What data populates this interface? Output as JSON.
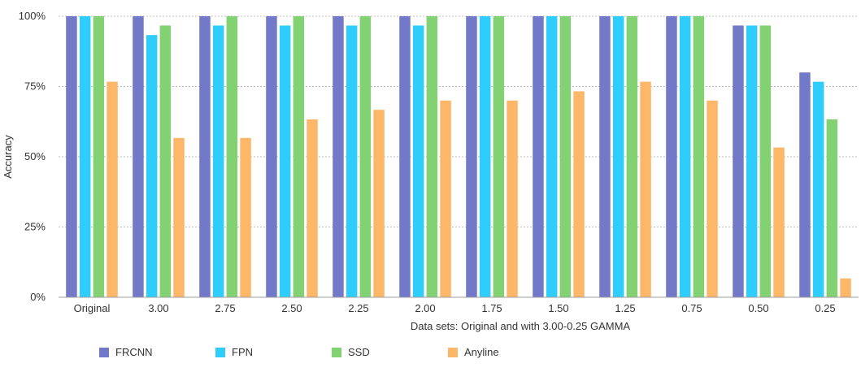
{
  "chart_data": {
    "type": "bar",
    "title": "",
    "xlabel": "Data sets: Original and with 3.00-0.25 GAMMA",
    "ylabel": "Accuracy",
    "ylim": [
      0,
      100
    ],
    "yticks": [
      "0%",
      "25%",
      "50%",
      "75%",
      "100%"
    ],
    "grid": true,
    "legend_position": "bottom-left",
    "categories": [
      "Original",
      "3.00",
      "2.75",
      "2.50",
      "2.25",
      "2.00",
      "1.75",
      "1.50",
      "1.25",
      "0.75",
      "0.50",
      "0.25"
    ],
    "series": [
      {
        "name": "FRCNN",
        "color": "#7379c9",
        "values": [
          100,
          100,
          100,
          100,
          100,
          100,
          100,
          100,
          100,
          100,
          96.7,
          80
        ]
      },
      {
        "name": "FPN",
        "color": "#2fcdfb",
        "values": [
          100,
          93.3,
          96.7,
          96.7,
          96.7,
          96.7,
          100,
          100,
          100,
          100,
          96.7,
          76.7
        ]
      },
      {
        "name": "SSD",
        "color": "#82d274",
        "values": [
          100,
          96.7,
          100,
          100,
          100,
          100,
          100,
          100,
          100,
          100,
          96.7,
          63.3
        ]
      },
      {
        "name": "Anyline",
        "color": "#fdb768",
        "values": [
          76.7,
          56.7,
          56.7,
          63.3,
          66.7,
          70,
          70,
          73.3,
          76.7,
          70,
          53.3,
          6.7
        ]
      }
    ]
  }
}
